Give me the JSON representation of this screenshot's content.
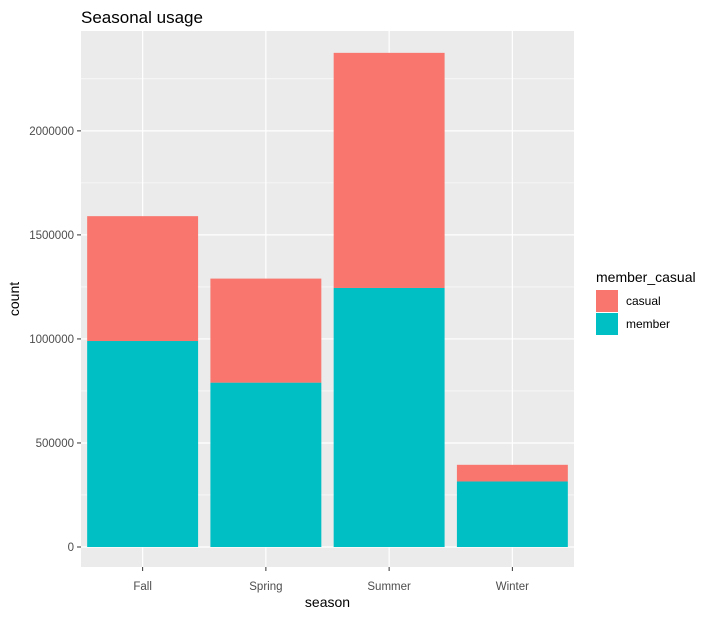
{
  "chart_data": {
    "type": "bar",
    "stacked": true,
    "title": "Seasonal usage",
    "xlabel": "season",
    "ylabel": "count",
    "categories": [
      "Fall",
      "Spring",
      "Summer",
      "Winter"
    ],
    "series": [
      {
        "name": "casual",
        "color": "#F8766D",
        "values": [
          600000,
          500000,
          1130000,
          80000
        ]
      },
      {
        "name": "member",
        "color": "#00BFC4",
        "values": [
          990000,
          790000,
          1245000,
          315000
        ]
      }
    ],
    "ylim": [
      0,
      2480000
    ],
    "yticks": [
      0,
      500000,
      1000000,
      1500000,
      2000000
    ],
    "ytick_labels": [
      "0",
      "500000",
      "1000000",
      "1500000",
      "2000000"
    ],
    "grid": true,
    "panel_background": "#EBEBEB",
    "legend": {
      "title": "member_casual",
      "position": "right",
      "items": [
        "casual",
        "member"
      ]
    }
  }
}
